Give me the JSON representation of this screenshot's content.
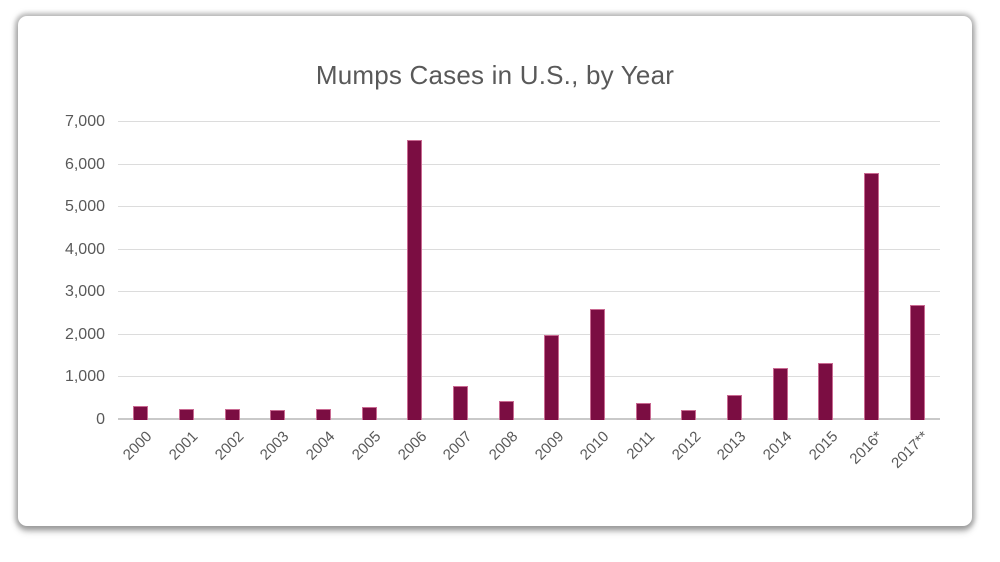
{
  "window": {
    "background": "#ffffff"
  },
  "chart_data": {
    "type": "bar",
    "title": "Mumps Cases in U.S., by Year",
    "categories": [
      "2000",
      "2001",
      "2002",
      "2003",
      "2004",
      "2005",
      "2006",
      "2007",
      "2008",
      "2009",
      "2010",
      "2011",
      "2012",
      "2013",
      "2014",
      "2015",
      "2016*",
      "2017**"
    ],
    "values": [
      338,
      266,
      270,
      231,
      258,
      314,
      6584,
      800,
      454,
      1991,
      2612,
      404,
      229,
      584,
      1223,
      1329,
      5800,
      2700
    ],
    "xlabel": "",
    "ylabel": "",
    "ylim": [
      0,
      7000
    ],
    "ytick_interval": 1000,
    "ytick_labels": [
      "0",
      "1,000",
      "2,000",
      "3,000",
      "4,000",
      "5,000",
      "6,000",
      "7,000"
    ],
    "grid": true,
    "legend_position": "none",
    "bar_color": "#7B0D42",
    "bar_border_color": "#C96A92",
    "title_color": "#595959",
    "axis_label_color": "#595959",
    "gridline_color": "#DCDCDC"
  }
}
